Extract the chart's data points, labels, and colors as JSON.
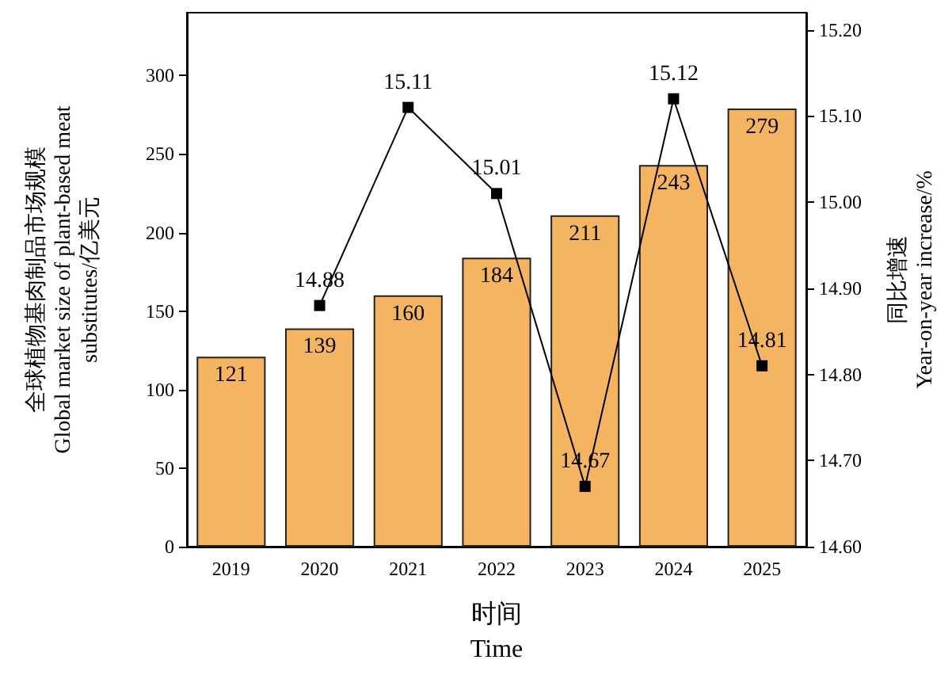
{
  "chart_data": {
    "type": "bar",
    "xlabel": "时间\nTime",
    "ylabel": "全球植物基肉制品市场规模\nGlobal market size of plant-based meat\nsubstitutes/亿美元",
    "y2label": "同比增速\nYear-on-year increase/%",
    "categories": [
      "2019",
      "2020",
      "2021",
      "2022",
      "2023",
      "2024",
      "2025"
    ],
    "series": [
      {
        "color": "#f5b461",
        "values": [
          121,
          139,
          160,
          184,
          211,
          243,
          279
        ]
      },
      {
        "type": "line",
        "axis": "y2",
        "color": "#000000",
        "marker": "square",
        "values": [
          null,
          14.88,
          15.11,
          15.01,
          14.67,
          15.12,
          14.81
        ]
      }
    ],
    "ylim": [
      0,
      340
    ],
    "yticks": [
      0,
      50,
      100,
      150,
      200,
      250,
      300
    ],
    "y2lim": [
      14.6,
      15.22
    ],
    "y2ticks": [
      {
        "value": 14.6,
        "label": "14.60"
      },
      {
        "value": 14.7,
        "label": "14.70"
      },
      {
        "value": 14.8,
        "label": "14.80"
      },
      {
        "value": 14.9,
        "label": "14.90"
      },
      {
        "value": 15.0,
        "label": "15.00"
      },
      {
        "value": 15.1,
        "label": "15.10"
      },
      {
        "value": 15.2,
        "label": "15.20"
      }
    ],
    "data_labels": true,
    "grid": false
  }
}
